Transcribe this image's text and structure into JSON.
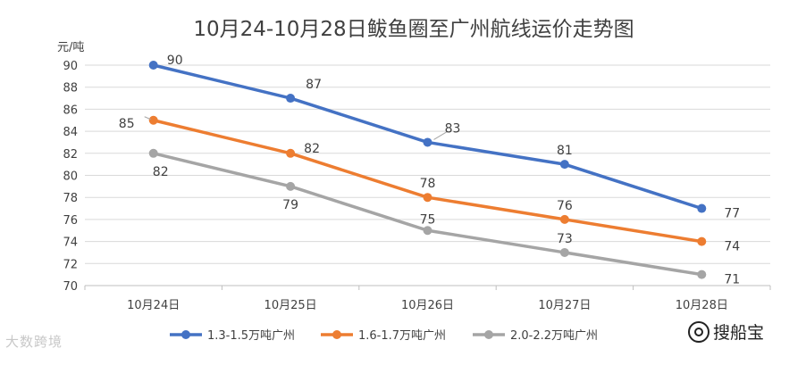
{
  "chart_data": {
    "type": "line",
    "title": "10月24-10月28日鲅鱼圈至广州航线运价走势图",
    "ylabel": "元/吨",
    "xlabel": "",
    "categories": [
      "10月24日",
      "10月25日",
      "10月26日",
      "10月27日",
      "10月28日"
    ],
    "ylim": [
      70,
      90
    ],
    "yticks": [
      70,
      72,
      74,
      76,
      78,
      80,
      82,
      84,
      86,
      88,
      90
    ],
    "grid": true,
    "legend_position": "bottom",
    "series": [
      {
        "name": "1.3-1.5万吨广州",
        "color": "#4472C4",
        "values": [
          90,
          87,
          83,
          81,
          77
        ]
      },
      {
        "name": "1.6-1.7万吨广州",
        "color": "#ED7D31",
        "values": [
          85,
          82,
          78,
          76,
          74
        ]
      },
      {
        "name": "2.0-2.2万吨广州",
        "color": "#A5A5A5",
        "values": [
          82,
          79,
          75,
          73,
          71
        ]
      }
    ]
  },
  "watermarks": {
    "left": "大数跨境",
    "right": "搜船宝"
  }
}
